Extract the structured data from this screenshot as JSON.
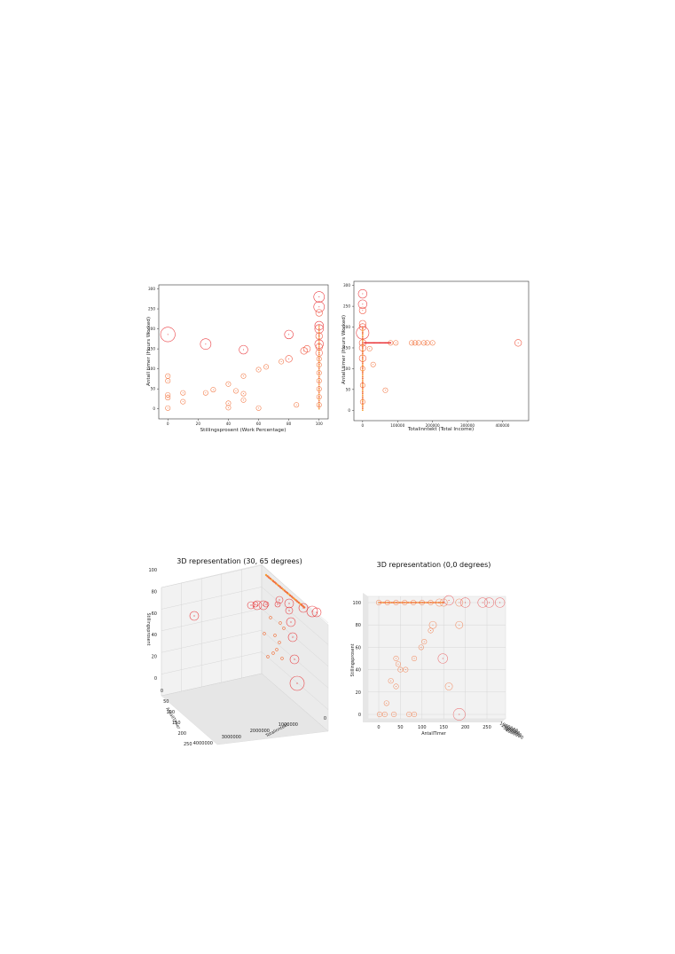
{
  "chart_data": [
    {
      "type": "scatter",
      "title": "",
      "xlabel": "Stillingsprosent (Work Percentage)",
      "ylabel": "Antall timer (Hours Worked)",
      "xlim": [
        -6,
        106
      ],
      "ylim": [
        -25,
        310
      ],
      "xticks": [
        "0",
        "20",
        "40",
        "60",
        "80",
        "100"
      ],
      "yticks": [
        "0",
        "50",
        "100",
        "150",
        "200",
        "250",
        "300"
      ],
      "grid": false,
      "colors": {
        "large": "#e8282c",
        "medium": "#f2703a",
        "small": "#f6a135"
      },
      "points": [
        {
          "x": 0,
          "y": 186,
          "s": 6
        },
        {
          "x": 25,
          "y": 162,
          "s": 4
        },
        {
          "x": 50,
          "y": 148,
          "s": 3
        },
        {
          "x": 80,
          "y": 186,
          "s": 3
        },
        {
          "x": 80,
          "y": 125,
          "s": 2
        },
        {
          "x": 90,
          "y": 145,
          "s": 2
        },
        {
          "x": 92,
          "y": 150,
          "s": 2
        },
        {
          "x": 100,
          "y": 280,
          "s": 4
        },
        {
          "x": 100,
          "y": 255,
          "s": 4
        },
        {
          "x": 100,
          "y": 240,
          "s": 2
        },
        {
          "x": 100,
          "y": 208,
          "s": 3
        },
        {
          "x": 100,
          "y": 200,
          "s": 3
        },
        {
          "x": 100,
          "y": 182,
          "s": 2
        },
        {
          "x": 100,
          "y": 162,
          "s": 3
        },
        {
          "x": 100,
          "y": 155,
          "s": 2
        },
        {
          "x": 100,
          "y": 140,
          "s": 2
        },
        {
          "x": 100,
          "y": 125,
          "s": 1
        },
        {
          "x": 100,
          "y": 110,
          "s": 1
        },
        {
          "x": 100,
          "y": 90,
          "s": 1
        },
        {
          "x": 100,
          "y": 70,
          "s": 1
        },
        {
          "x": 100,
          "y": 50,
          "s": 1
        },
        {
          "x": 100,
          "y": 30,
          "s": 1
        },
        {
          "x": 100,
          "y": 10,
          "s": 1
        },
        {
          "x": 0,
          "y": 82,
          "s": 1
        },
        {
          "x": 0,
          "y": 70,
          "s": 1
        },
        {
          "x": 0,
          "y": 35,
          "s": 1
        },
        {
          "x": 0,
          "y": 28,
          "s": 1
        },
        {
          "x": 0,
          "y": 2,
          "s": 1
        },
        {
          "x": 10,
          "y": 40,
          "s": 1
        },
        {
          "x": 10,
          "y": 18,
          "s": 1
        },
        {
          "x": 25,
          "y": 40,
          "s": 1
        },
        {
          "x": 30,
          "y": 48,
          "s": 1
        },
        {
          "x": 40,
          "y": 62,
          "s": 1
        },
        {
          "x": 40,
          "y": 14,
          "s": 1
        },
        {
          "x": 40,
          "y": 3,
          "s": 1
        },
        {
          "x": 45,
          "y": 45,
          "s": 1
        },
        {
          "x": 50,
          "y": 82,
          "s": 1
        },
        {
          "x": 50,
          "y": 38,
          "s": 1
        },
        {
          "x": 50,
          "y": 22,
          "s": 1
        },
        {
          "x": 60,
          "y": 98,
          "s": 1
        },
        {
          "x": 60,
          "y": 2,
          "s": 1
        },
        {
          "x": 65,
          "y": 105,
          "s": 1
        },
        {
          "x": 75,
          "y": 118,
          "s": 1
        },
        {
          "x": 85,
          "y": 10,
          "s": 1
        }
      ]
    },
    {
      "type": "scatter",
      "title": "",
      "xlabel": "Totalinntekt (Total Income)",
      "ylabel": "Antall timer (Hours Worked)",
      "xlim": [
        -25000,
        475000
      ],
      "ylim": [
        -25,
        310
      ],
      "xticks": [
        "0",
        "100000",
        "200000",
        "300000",
        "400000"
      ],
      "yticks": [
        "0",
        "50",
        "100",
        "150",
        "200",
        "250",
        "300"
      ],
      "grid": false,
      "points": [
        {
          "x": 0,
          "y": 280,
          "s": 3
        },
        {
          "x": 0,
          "y": 255,
          "s": 3
        },
        {
          "x": 0,
          "y": 240,
          "s": 2
        },
        {
          "x": 0,
          "y": 208,
          "s": 2
        },
        {
          "x": 0,
          "y": 200,
          "s": 2
        },
        {
          "x": 0,
          "y": 186,
          "s": 5
        },
        {
          "x": 0,
          "y": 162,
          "s": 2
        },
        {
          "x": 0,
          "y": 150,
          "s": 2
        },
        {
          "x": 0,
          "y": 125,
          "s": 2
        },
        {
          "x": 0,
          "y": 100,
          "s": 1
        },
        {
          "x": 0,
          "y": 60,
          "s": 1
        },
        {
          "x": 0,
          "y": 20,
          "s": 1
        },
        {
          "x": 80000,
          "y": 162,
          "s": 1
        },
        {
          "x": 95000,
          "y": 162,
          "s": 1
        },
        {
          "x": 140000,
          "y": 162,
          "s": 1
        },
        {
          "x": 150000,
          "y": 162,
          "s": 1
        },
        {
          "x": 160000,
          "y": 162,
          "s": 1
        },
        {
          "x": 175000,
          "y": 162,
          "s": 1
        },
        {
          "x": 185000,
          "y": 162,
          "s": 1
        },
        {
          "x": 200000,
          "y": 162,
          "s": 1
        },
        {
          "x": 445000,
          "y": 162,
          "s": 2
        },
        {
          "x": 65000,
          "y": 48,
          "s": 1
        },
        {
          "x": 20000,
          "y": 148,
          "s": 1
        },
        {
          "x": 30000,
          "y": 110,
          "s": 1
        }
      ]
    },
    {
      "type": "scatter3d",
      "title": "3D representation (30, 65 degrees)",
      "xlabel": "AntallTimer",
      "ylabel": "Totalinntekt",
      "zlabel": "Stillingsprosent",
      "ticks_z": [
        "0",
        "20",
        "40",
        "60",
        "80",
        "100"
      ],
      "ticks_timer": [
        "0",
        "50",
        "100",
        "150",
        "200",
        "250"
      ],
      "ticks_inntekt": [
        "0",
        "1000000",
        "2000000",
        "3000000",
        "4000000"
      ]
    },
    {
      "type": "scatter3d",
      "title": "3D representation (0,0 degrees)",
      "xlabel": "AntallTimer",
      "ylabel": "Totalinntekt",
      "zlabel": "Stillingsprosent",
      "ticks_x": [
        "0",
        "50",
        "100",
        "150",
        "200",
        "250"
      ],
      "ticks_z": [
        "0",
        "20",
        "40",
        "60",
        "80",
        "100"
      ],
      "ticks_depth": [
        "1000000",
        "2000000",
        "3000000",
        "4000000"
      ],
      "points": [
        {
          "x": 0,
          "y": 100,
          "s": 1
        },
        {
          "x": 20,
          "y": 100,
          "s": 1
        },
        {
          "x": 40,
          "y": 100,
          "s": 1
        },
        {
          "x": 60,
          "y": 100,
          "s": 1
        },
        {
          "x": 80,
          "y": 100,
          "s": 1
        },
        {
          "x": 100,
          "y": 100,
          "s": 1
        },
        {
          "x": 120,
          "y": 100,
          "s": 1
        },
        {
          "x": 140,
          "y": 100,
          "s": 2
        },
        {
          "x": 150,
          "y": 100,
          "s": 2
        },
        {
          "x": 162,
          "y": 102,
          "s": 3
        },
        {
          "x": 186,
          "y": 100,
          "s": 2
        },
        {
          "x": 200,
          "y": 100,
          "s": 3
        },
        {
          "x": 240,
          "y": 100,
          "s": 3
        },
        {
          "x": 255,
          "y": 100,
          "s": 3
        },
        {
          "x": 280,
          "y": 100,
          "s": 3
        },
        {
          "x": 186,
          "y": 80,
          "s": 2
        },
        {
          "x": 125,
          "y": 80,
          "s": 2
        },
        {
          "x": 120,
          "y": 75,
          "s": 1
        },
        {
          "x": 148,
          "y": 50,
          "s": 3
        },
        {
          "x": 162,
          "y": 25,
          "s": 2
        },
        {
          "x": 186,
          "y": 0,
          "s": 4
        },
        {
          "x": 98,
          "y": 60,
          "s": 1
        },
        {
          "x": 105,
          "y": 65,
          "s": 1
        },
        {
          "x": 82,
          "y": 50,
          "s": 1
        },
        {
          "x": 62,
          "y": 40,
          "s": 1
        },
        {
          "x": 45,
          "y": 45,
          "s": 1
        },
        {
          "x": 40,
          "y": 25,
          "s": 1
        },
        {
          "x": 18,
          "y": 10,
          "s": 1
        },
        {
          "x": 14,
          "y": 0,
          "s": 1
        },
        {
          "x": 35,
          "y": 0,
          "s": 1
        },
        {
          "x": 2,
          "y": 0,
          "s": 1
        },
        {
          "x": 70,
          "y": 0,
          "s": 1
        },
        {
          "x": 82,
          "y": 0,
          "s": 1
        },
        {
          "x": 40,
          "y": 50,
          "s": 1
        },
        {
          "x": 50,
          "y": 40,
          "s": 1
        },
        {
          "x": 28,
          "y": 30,
          "s": 1
        }
      ]
    }
  ]
}
